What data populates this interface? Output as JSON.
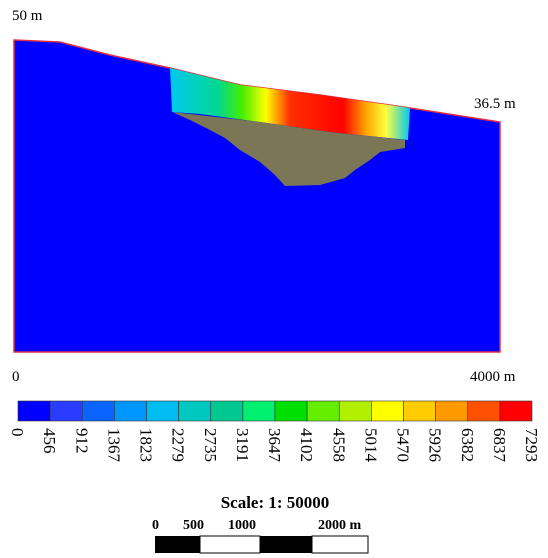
{
  "labels": {
    "elevation_left": "50 m",
    "elevation_right": "36.5 m",
    "x_start": "0",
    "x_end": "4000 m"
  },
  "colorbar": {
    "colors": [
      "#0000ff",
      "#2a3cff",
      "#0a64ff",
      "#0096ff",
      "#00bcf0",
      "#00c8c0",
      "#00c890",
      "#00f070",
      "#00e000",
      "#66ee00",
      "#b0f000",
      "#ffff00",
      "#ffcc00",
      "#ff9900",
      "#ff5000",
      "#ff0000"
    ],
    "ticks": [
      0,
      456,
      912,
      1367,
      1823,
      2279,
      2735,
      3191,
      3647,
      4102,
      4558,
      5014,
      5470,
      5926,
      6382,
      6837,
      7293
    ]
  },
  "scale": {
    "title": "Scale: 1: 50000",
    "ticks": [
      "0",
      "500",
      "1000",
      "2000 m"
    ]
  }
}
